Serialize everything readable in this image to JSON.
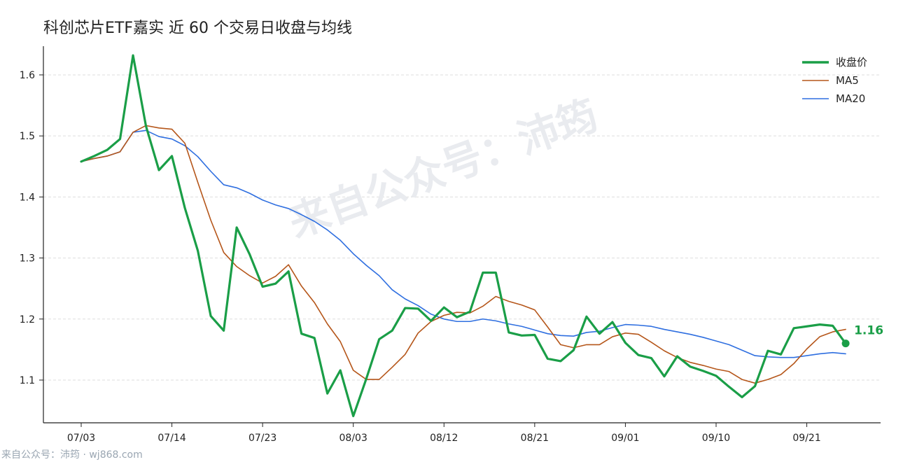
{
  "title": "科创芯片ETF嘉实 近 60 个交易日收盘与均线",
  "footer": "来自公众号：沛筠 · wj868.com",
  "watermark": "来自公众号：沛筠",
  "colors": {
    "close": "#1a9e47",
    "ma5": "#b5561a",
    "ma20": "#2f6fe0",
    "grid": "#dddddd",
    "axis": "#222222"
  },
  "chart_data": {
    "type": "line",
    "title": "科创芯片ETF嘉实 近 60 个交易日收盘与均线",
    "xlabel": "",
    "ylabel": "",
    "x_tick_labels": [
      "07/03",
      "07/14",
      "07/23",
      "08/03",
      "08/12",
      "08/21",
      "09/01",
      "09/10",
      "09/21"
    ],
    "x_tick_index": [
      0,
      7,
      14,
      21,
      28,
      35,
      42,
      49,
      56
    ],
    "y_ticks": [
      1.1,
      1.2,
      1.3,
      1.4,
      1.5,
      1.6
    ],
    "ylim": [
      1.03,
      1.647
    ],
    "grid": "y-dashed",
    "legend_position": "top-right",
    "last_value_label": "1.16",
    "series": [
      {
        "name": "收盘价",
        "values": [
          1.458,
          1.467,
          1.477,
          1.495,
          1.632,
          1.516,
          1.444,
          1.467,
          1.382,
          1.312,
          1.205,
          1.181,
          1.35,
          1.306,
          1.253,
          1.258,
          1.278,
          1.176,
          1.169,
          1.078,
          1.116,
          1.041,
          1.102,
          1.167,
          1.181,
          1.218,
          1.217,
          1.197,
          1.219,
          1.203,
          1.212,
          1.276,
          1.276,
          1.178,
          1.173,
          1.174,
          1.135,
          1.131,
          1.149,
          1.204,
          1.176,
          1.195,
          1.161,
          1.141,
          1.136,
          1.106,
          1.139,
          1.122,
          1.115,
          1.107,
          1.089,
          1.072,
          1.09,
          1.148,
          1.142,
          1.185,
          1.188,
          1.191,
          1.189,
          1.16
        ]
      },
      {
        "name": "MA5",
        "values": [
          1.458,
          1.463,
          1.467,
          1.474,
          1.506,
          1.517,
          1.513,
          1.511,
          1.488,
          1.424,
          1.362,
          1.309,
          1.286,
          1.271,
          1.259,
          1.27,
          1.289,
          1.254,
          1.227,
          1.192,
          1.163,
          1.116,
          1.101,
          1.101,
          1.121,
          1.142,
          1.177,
          1.196,
          1.206,
          1.211,
          1.21,
          1.221,
          1.237,
          1.229,
          1.223,
          1.215,
          1.187,
          1.158,
          1.153,
          1.158,
          1.158,
          1.171,
          1.177,
          1.175,
          1.162,
          1.148,
          1.137,
          1.129,
          1.124,
          1.118,
          1.114,
          1.101,
          1.095,
          1.101,
          1.109,
          1.127,
          1.151,
          1.171,
          1.179,
          1.183
        ]
      },
      {
        "name": "MA20",
        "values": [
          1.458,
          1.463,
          1.467,
          1.474,
          1.506,
          1.509,
          1.499,
          1.495,
          1.484,
          1.466,
          1.442,
          1.42,
          1.415,
          1.406,
          1.395,
          1.387,
          1.381,
          1.371,
          1.36,
          1.346,
          1.329,
          1.307,
          1.288,
          1.271,
          1.248,
          1.233,
          1.222,
          1.208,
          1.2,
          1.196,
          1.196,
          1.2,
          1.197,
          1.192,
          1.188,
          1.182,
          1.176,
          1.173,
          1.172,
          1.178,
          1.18,
          1.186,
          1.191,
          1.19,
          1.188,
          1.183,
          1.179,
          1.175,
          1.17,
          1.164,
          1.158,
          1.149,
          1.14,
          1.138,
          1.137,
          1.137,
          1.14,
          1.143,
          1.145,
          1.143
        ]
      }
    ]
  }
}
